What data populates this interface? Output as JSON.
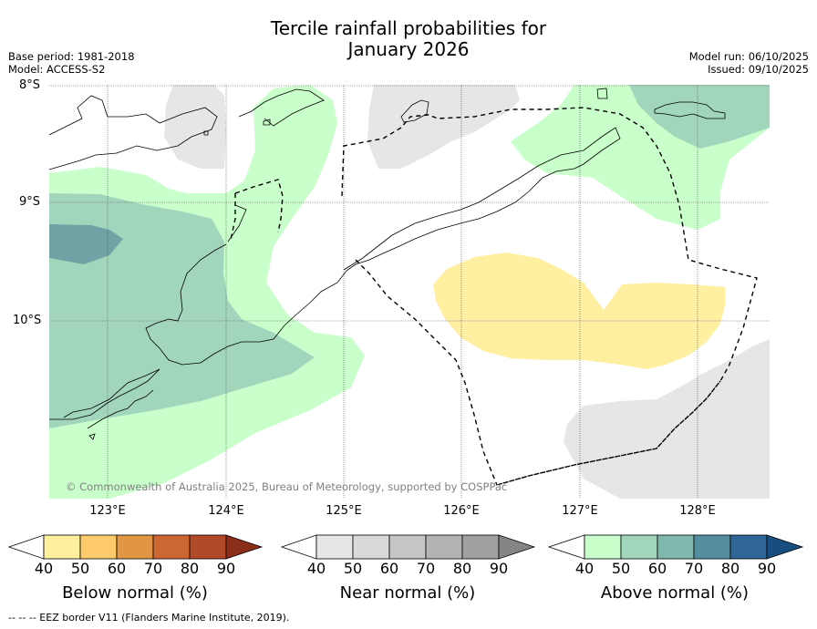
{
  "title_line1": "Tercile rainfall probabilities for",
  "title_line2": "January 2026",
  "base_period": "Base period: 1981-2018",
  "model": "Model: ACCESS-S2",
  "model_run": "Model run: 06/10/2025",
  "issued": "Issued: 09/10/2025",
  "lat_labels": [
    "8°S",
    "9°S",
    "10°S"
  ],
  "lon_labels": [
    "123°E",
    "124°E",
    "125°E",
    "126°E",
    "127°E",
    "128°E"
  ],
  "copyright": "© Commonwealth of Australia 2025, Bureau of Meteorology, supported by COSPPac",
  "colorbars": [
    {
      "name": "below",
      "title": "Below normal (%)",
      "ticks": [
        "40",
        "50",
        "60",
        "70",
        "80",
        "90"
      ],
      "colors": [
        "#fff0a0",
        "#fdcb6b",
        "#e19545",
        "#cc6633",
        "#b04a28",
        "#8a2e1a"
      ]
    },
    {
      "name": "near",
      "title": "Near normal (%)",
      "ticks": [
        "40",
        "50",
        "60",
        "70",
        "80",
        "90"
      ],
      "colors": [
        "#e6e6e6",
        "#d9d9d9",
        "#c6c6c6",
        "#b3b3b3",
        "#a0a0a0",
        "#858585"
      ]
    },
    {
      "name": "above",
      "title": "Above normal (%)",
      "ticks": [
        "40",
        "50",
        "60",
        "70",
        "80",
        "90"
      ],
      "colors": [
        "#c9ffcb",
        "#a1d6bc",
        "#80b8ad",
        "#548e9e",
        "#306597",
        "#174d7f"
      ]
    }
  ],
  "footnote": "-- -- -- EEZ border V11 (Flanders Marine Institute, 2019).",
  "colors": {
    "above_40": "#c9ffcb",
    "above_50": "#a1d6bc",
    "above_60": "#71a3a6",
    "below_40": "#ffefa1",
    "near_40": "#e6e6e6"
  }
}
